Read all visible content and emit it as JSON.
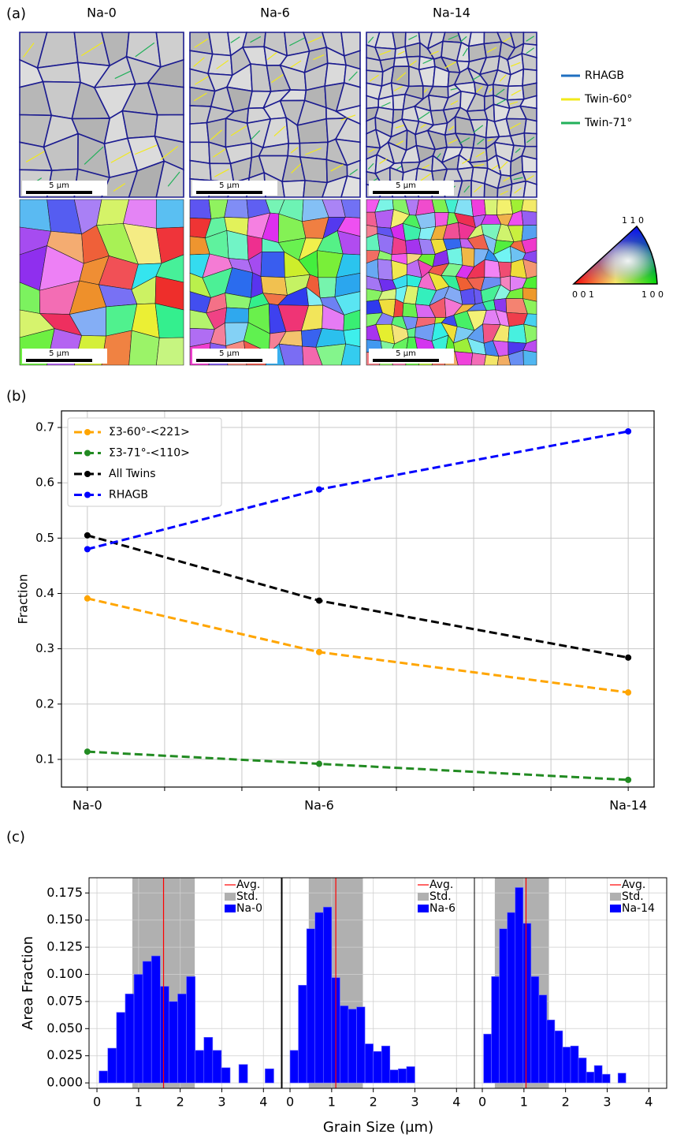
{
  "panel_labels": [
    "(a)",
    "(b)",
    "(c)"
  ],
  "micrographs": {
    "columns": [
      "Na-0",
      "Na-6",
      "Na-14"
    ],
    "scale_bar": "5 µm",
    "boundary_legend": [
      {
        "name": "RHAGB",
        "color": "#1f6fc0"
      },
      {
        "name": "Twin-60°",
        "color": "#f2ea1a"
      },
      {
        "name": "Twin-71°",
        "color": "#22b05a"
      }
    ],
    "ipf_labels": {
      "top": "1 1 0",
      "left": "0 0 1",
      "right": "1 0 0"
    }
  },
  "chart_data": [
    {
      "type": "line",
      "ylabel": "Fraction",
      "x": [
        0,
        6,
        14
      ],
      "xticks": [
        {
          "value": 0,
          "label": "Na-0"
        },
        {
          "value": 6,
          "label": "Na-6"
        },
        {
          "value": 14,
          "label": "Na-14"
        }
      ],
      "minor_xticks": [
        2,
        4,
        8,
        10,
        12
      ],
      "xlim": [
        -0.67,
        14.67
      ],
      "ylim": [
        0.05,
        0.73
      ],
      "yticks": [
        0.1,
        0.2,
        0.3,
        0.4,
        0.5,
        0.6,
        0.7
      ],
      "grid": true,
      "legend": "upper left",
      "series": [
        {
          "name": "Σ3-60°-<221>",
          "color": "#ffa500",
          "values": [
            0.391,
            0.294,
            0.221
          ]
        },
        {
          "name": "Σ3-71°-<110>",
          "color": "#228b22",
          "values": [
            0.114,
            0.092,
            0.063
          ]
        },
        {
          "name": "All Twins",
          "color": "#000000",
          "values": [
            0.505,
            0.387,
            0.284
          ]
        },
        {
          "name": "RHAGB",
          "color": "#0000ff",
          "values": [
            0.48,
            0.588,
            0.693
          ]
        }
      ]
    },
    {
      "type": "histogram",
      "ylabel": "Area Fraction",
      "name": "Na-0",
      "color": "#0000ff",
      "bins": [
        0.05,
        0.26,
        0.47,
        0.68,
        0.89,
        1.1,
        1.31,
        1.52,
        1.73,
        1.94,
        2.15,
        2.36,
        2.57,
        2.78,
        2.99,
        3.2,
        3.41,
        3.62,
        3.83,
        4.04,
        4.25
      ],
      "values": [
        0.011,
        0.032,
        0.065,
        0.082,
        0.1,
        0.112,
        0.117,
        0.089,
        0.075,
        0.082,
        0.098,
        0.03,
        0.042,
        0.03,
        0.014,
        0,
        0.017,
        0,
        0,
        0.013
      ],
      "avg": {
        "name": "Avg.",
        "value": 1.6,
        "color": "#ff0000"
      },
      "std": {
        "name": "Std.",
        "range": [
          0.85,
          2.35
        ],
        "color": "#b0b0b0"
      },
      "xlim": [
        -0.19,
        4.43
      ],
      "ylim": [
        -0.005,
        0.189
      ],
      "xticks": [
        0,
        1,
        2,
        3,
        4
      ],
      "yticks": [
        {
          "value": 0,
          "label": "0.000"
        },
        0.025,
        {
          "value": 0.05,
          "label": "0.050"
        },
        0.075,
        {
          "value": 0.1,
          "label": "0.100"
        },
        0.125,
        {
          "value": 0.15,
          "label": "0.150"
        },
        0.175
      ],
      "grid": true
    },
    {
      "type": "histogram",
      "xlabel": "Grain Size (µm)",
      "name": "Na-6",
      "color": "#0000ff",
      "bins": [
        0,
        0.2,
        0.4,
        0.6,
        0.8,
        1.0,
        1.2,
        1.4,
        1.6,
        1.8,
        2.0,
        2.2,
        2.4,
        2.6,
        2.8,
        3.0
      ],
      "values": [
        0.03,
        0.09,
        0.142,
        0.157,
        0.162,
        0.097,
        0.071,
        0.068,
        0.07,
        0.036,
        0.029,
        0.034,
        0.012,
        0.013,
        0.015
      ],
      "avg": {
        "name": "Avg.",
        "value": 1.1,
        "color": "#ff0000"
      },
      "std": {
        "name": "Std.",
        "range": [
          0.45,
          1.75
        ],
        "color": "#b0b0b0"
      },
      "xlim": [
        -0.19,
        4.43
      ],
      "ylim": [
        -0.005,
        0.189
      ],
      "xticks": [
        0,
        1,
        2,
        3,
        4
      ],
      "yticks": [
        0,
        0.025,
        0.05,
        0.075,
        0.1,
        0.125,
        0.15,
        0.175
      ],
      "grid": true
    },
    {
      "type": "histogram",
      "name": "Na-14",
      "color": "#0000ff",
      "bins": [
        0.03,
        0.22,
        0.41,
        0.6,
        0.79,
        0.98,
        1.17,
        1.36,
        1.55,
        1.74,
        1.93,
        2.12,
        2.31,
        2.5,
        2.69,
        2.88,
        3.07,
        3.26,
        3.45
      ],
      "values": [
        0.045,
        0.098,
        0.142,
        0.157,
        0.18,
        0.147,
        0.098,
        0.081,
        0.058,
        0.048,
        0.033,
        0.034,
        0.023,
        0.01,
        0.016,
        0.008,
        0,
        0.009
      ],
      "avg": {
        "name": "Avg.",
        "value": 1.05,
        "color": "#ff0000"
      },
      "std": {
        "name": "Std.",
        "range": [
          0.3,
          1.6
        ],
        "color": "#b0b0b0"
      },
      "xlim": [
        -0.19,
        4.43
      ],
      "ylim": [
        -0.005,
        0.189
      ],
      "xticks": [
        0,
        1,
        2,
        3,
        4
      ],
      "yticks": [
        0,
        0.025,
        0.05,
        0.075,
        0.1,
        0.125,
        0.15,
        0.175
      ],
      "grid": true
    }
  ]
}
